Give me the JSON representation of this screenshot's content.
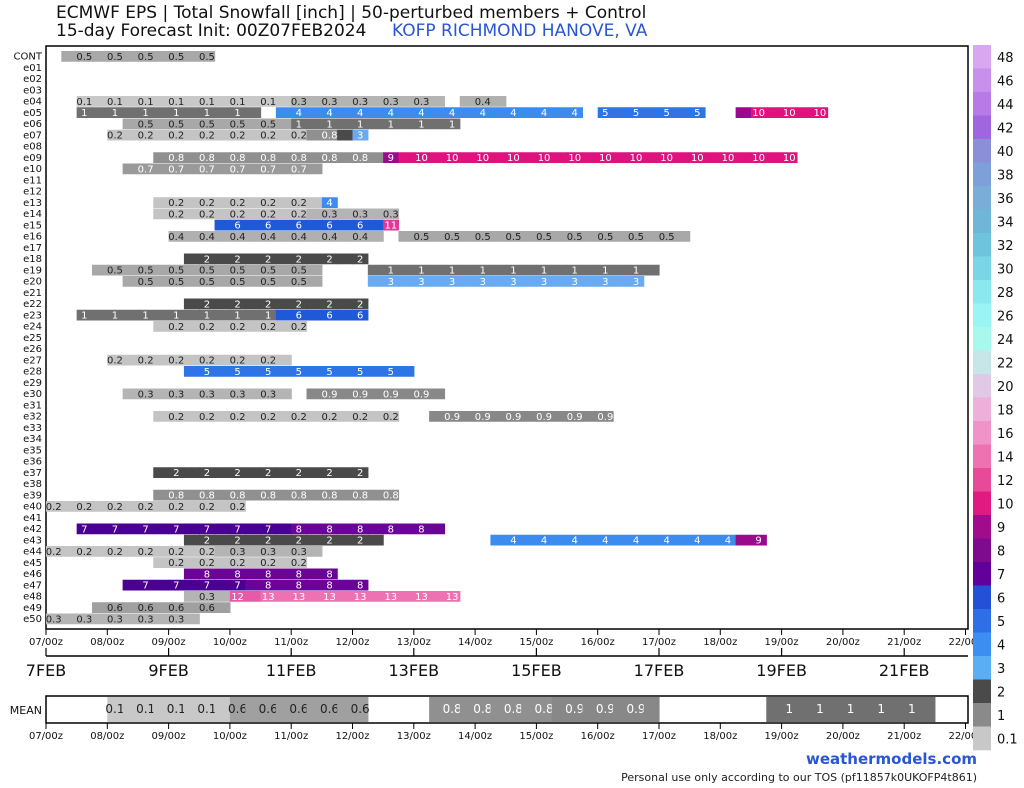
{
  "header": {
    "title_line1": "ECMWF EPS | Total Snowfall [inch] | 50-perturbed members + Control",
    "title_line2": "15-day Forecast Init: 00Z07FEB2024",
    "station": "KOFP RICHMOND HANOVE, VA"
  },
  "footer": {
    "brand": "weathermodels.com",
    "tos": "Personal use only according to our TOS (pf11857k0UKOFP4t861)"
  },
  "chart_data": {
    "type": "heatmap",
    "x_tick_labels": [
      "07/00z",
      "08/00z",
      "09/00z",
      "10/00z",
      "11/00z",
      "12/00z",
      "13/00z",
      "14/00z",
      "15/00z",
      "16/00z",
      "17/00z",
      "18/00z",
      "19/00z",
      "20/00z",
      "21/00z",
      "22/00z"
    ],
    "date_labels": [
      "7FEB",
      "9FEB",
      "11FEB",
      "13FEB",
      "15FEB",
      "17FEB",
      "19FEB",
      "21FEB"
    ],
    "members": [
      {
        "name": "CONT",
        "segs": [
          [
            1,
            10,
            "0.5"
          ]
        ]
      },
      {
        "name": "e01",
        "segs": []
      },
      {
        "name": "e02",
        "segs": []
      },
      {
        "name": "e03",
        "segs": []
      },
      {
        "name": "e04",
        "segs": [
          [
            2,
            14,
            "0.1"
          ],
          [
            0,
            10,
            "0.3"
          ],
          [
            1,
            3,
            "0.4"
          ]
        ]
      },
      {
        "name": "e05",
        "segs": [
          [
            2,
            12,
            "1"
          ],
          [
            1,
            20,
            "4"
          ],
          [
            1,
            7,
            "5"
          ],
          [
            2,
            1,
            "9"
          ],
          [
            0,
            5,
            "10"
          ]
        ]
      },
      {
        "name": "e06",
        "segs": [
          [
            5,
            11,
            "0.5"
          ],
          [
            0,
            11,
            "1"
          ]
        ]
      },
      {
        "name": "e07",
        "segs": [
          [
            4,
            13,
            "0.2"
          ],
          [
            0,
            2,
            "0.8"
          ],
          [
            0,
            1,
            "2"
          ],
          [
            0,
            1,
            "3"
          ]
        ]
      },
      {
        "name": "e08",
        "segs": []
      },
      {
        "name": "e09",
        "segs": [
          [
            7,
            15,
            "0.8"
          ],
          [
            0,
            1,
            "9"
          ],
          [
            0,
            26,
            "10"
          ]
        ]
      },
      {
        "name": "e10",
        "segs": [
          [
            5,
            13,
            "0.7"
          ]
        ]
      },
      {
        "name": "e11",
        "segs": []
      },
      {
        "name": "e12",
        "segs": []
      },
      {
        "name": "e13",
        "segs": [
          [
            7,
            11,
            "0.2"
          ],
          [
            0,
            1,
            "4"
          ]
        ]
      },
      {
        "name": "e14",
        "segs": [
          [
            7,
            10,
            "0.2"
          ],
          [
            0,
            6,
            "0.3"
          ]
        ]
      },
      {
        "name": "e15",
        "segs": [
          [
            11,
            11,
            "6"
          ],
          [
            0,
            1,
            "11"
          ]
        ]
      },
      {
        "name": "e16",
        "segs": [
          [
            8,
            14,
            "0.4"
          ],
          [
            1,
            19,
            "0.5"
          ]
        ]
      },
      {
        "name": "e17",
        "segs": []
      },
      {
        "name": "e18",
        "segs": [
          [
            9,
            12,
            "2"
          ]
        ]
      },
      {
        "name": "e19",
        "segs": [
          [
            3,
            15,
            "0.5"
          ],
          [
            3,
            19,
            "1"
          ]
        ]
      },
      {
        "name": "e20",
        "segs": [
          [
            5,
            13,
            "0.5"
          ],
          [
            3,
            18,
            "3"
          ]
        ]
      },
      {
        "name": "e21",
        "segs": []
      },
      {
        "name": "e22",
        "segs": [
          [
            9,
            12,
            "2"
          ]
        ]
      },
      {
        "name": "e23",
        "segs": [
          [
            2,
            13,
            "1"
          ],
          [
            0,
            6,
            "6"
          ]
        ]
      },
      {
        "name": "e24",
        "segs": [
          [
            7,
            10,
            "0.2"
          ]
        ]
      },
      {
        "name": "e25",
        "segs": []
      },
      {
        "name": "e26",
        "segs": []
      },
      {
        "name": "e27",
        "segs": [
          [
            4,
            12,
            "0.2"
          ]
        ]
      },
      {
        "name": "e28",
        "segs": [
          [
            9,
            15,
            "5"
          ]
        ]
      },
      {
        "name": "e29",
        "segs": []
      },
      {
        "name": "e30",
        "segs": [
          [
            5,
            11,
            "0.3"
          ],
          [
            1,
            9,
            "0.9"
          ]
        ]
      },
      {
        "name": "e31",
        "segs": []
      },
      {
        "name": "e32",
        "segs": [
          [
            7,
            16,
            "0.2"
          ],
          [
            2,
            12,
            "0.9"
          ]
        ]
      },
      {
        "name": "e33",
        "segs": []
      },
      {
        "name": "e34",
        "segs": []
      },
      {
        "name": "e35",
        "segs": []
      },
      {
        "name": "e36",
        "segs": []
      },
      {
        "name": "e37",
        "segs": [
          [
            7,
            14,
            "2"
          ]
        ]
      },
      {
        "name": "e38",
        "segs": []
      },
      {
        "name": "e39",
        "segs": [
          [
            7,
            16,
            "0.8"
          ]
        ]
      },
      {
        "name": "e40",
        "segs": [
          [
            0,
            13,
            "0.2"
          ]
        ]
      },
      {
        "name": "e41",
        "segs": []
      },
      {
        "name": "e42",
        "segs": [
          [
            2,
            14,
            "7"
          ],
          [
            0,
            10,
            "8"
          ]
        ]
      },
      {
        "name": "e43",
        "segs": [
          [
            9,
            13,
            "2"
          ],
          [
            7,
            16,
            "4"
          ],
          [
            0,
            2,
            "9"
          ]
        ]
      },
      {
        "name": "e44",
        "segs": [
          [
            0,
            11,
            "0.2"
          ],
          [
            0,
            7,
            "0.3"
          ]
        ]
      },
      {
        "name": "e45",
        "segs": [
          [
            7,
            10,
            "0.2"
          ]
        ]
      },
      {
        "name": "e46",
        "segs": [
          [
            9,
            10,
            "8"
          ]
        ]
      },
      {
        "name": "e47",
        "segs": [
          [
            5,
            8,
            "7"
          ],
          [
            0,
            8,
            "8"
          ]
        ]
      },
      {
        "name": "e48",
        "segs": [
          [
            9,
            3,
            "0.3"
          ],
          [
            0,
            2,
            "12"
          ],
          [
            0,
            13,
            "13"
          ]
        ]
      },
      {
        "name": "e49",
        "segs": [
          [
            3,
            9,
            "0.6"
          ]
        ]
      },
      {
        "name": "e50",
        "segs": [
          [
            0,
            10,
            "0.3"
          ]
        ]
      }
    ],
    "mean": [
      [
        4,
        8,
        "0.1"
      ],
      [
        0,
        9,
        "0.6"
      ],
      [
        4,
        8,
        "0.8"
      ],
      [
        0,
        7,
        "0.9"
      ],
      [
        7,
        11,
        "1"
      ],
      [
        5,
        8,
        "2"
      ]
    ],
    "mean_label": "MEAN",
    "colorbar": {
      "labels": [
        "48",
        "46",
        "44",
        "42",
        "40",
        "38",
        "36",
        "34",
        "32",
        "30",
        "28",
        "26",
        "24",
        "22",
        "20",
        "18",
        "16",
        "14",
        "12",
        "10",
        "9",
        "8",
        "7",
        "6",
        "5",
        "4",
        "3",
        "2",
        "1",
        "0.1"
      ],
      "colors": [
        "#d9a6f0",
        "#c890ec",
        "#b77ae6",
        "#a066e0",
        "#8a8fd8",
        "#7ea0d8",
        "#7aaed8",
        "#6fb6d8",
        "#6ec4dc",
        "#7ad6e6",
        "#8ae8ee",
        "#9af4f6",
        "#a8f8ee",
        "#c6e6e8",
        "#e0c8e6",
        "#eeb0da",
        "#f094c8",
        "#ee72b2",
        "#e84a9a",
        "#e01a80",
        "#a00c8c",
        "#7e0a8e",
        "#62009c",
        "#2450d8",
        "#2e6ee6",
        "#3c8ef0",
        "#5aaef4",
        "#4a4a4a",
        "#8a8a8a",
        "#c8c8c8"
      ]
    },
    "band_colors": {
      "0.1": "#c8c8c8",
      "0.2": "#c4c4c4",
      "0.3": "#b4b4b4",
      "0.4": "#b0b0b0",
      "0.5": "#a8a8a8",
      "0.6": "#a0a0a0",
      "0.7": "#9a9a9a",
      "0.8": "#909090",
      "0.9": "#888888",
      "1": "#707070",
      "2": "#4a4a4a",
      "3": "#6aaaf2",
      "4": "#3c8cf0",
      "5": "#2e74e6",
      "6": "#1e5ad8",
      "7": "#4a0090",
      "8": "#6a0496",
      "9": "#9a0a8c",
      "10": "#e0127e",
      "11": "#e03a96",
      "12": "#e85aa8",
      "13": "#ec72b4"
    }
  }
}
